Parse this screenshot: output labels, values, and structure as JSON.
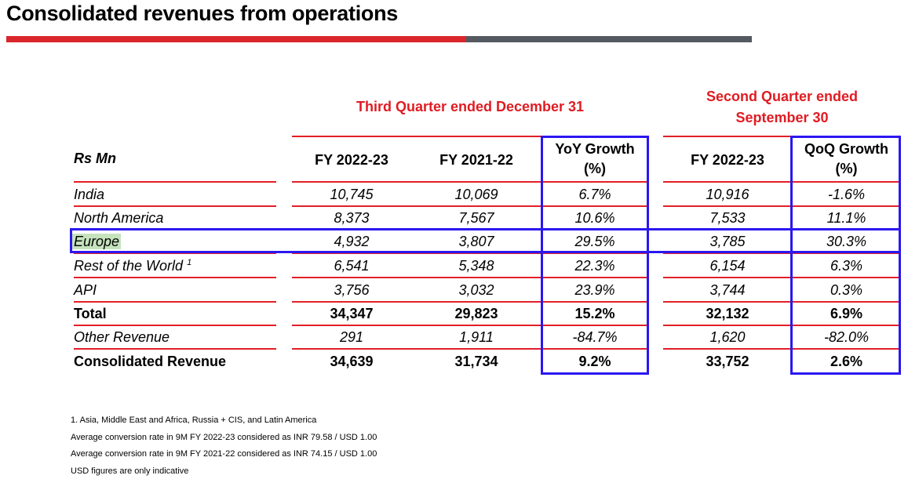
{
  "title": "Consolidated revenues from operations",
  "header": {
    "group_q3": "Third Quarter ended December 31",
    "group_q2_line1": "Second Quarter ended",
    "group_q2_line2": "September 30",
    "rs_mn": "Rs Mn",
    "col1": "FY 2022-23",
    "col2": "FY 2021-22",
    "col3_line1": "YoY Growth",
    "col3_line2": "(%)",
    "col4": "FY 2022-23",
    "col5_line1": "QoQ Growth",
    "col5_line2": "(%)"
  },
  "rows": [
    {
      "label": "India",
      "sup": "",
      "fy23": "10,745",
      "fy22": "10,069",
      "yoy": "6.7%",
      "q2": "10,916",
      "qoq": "-1.6%",
      "style": "italic"
    },
    {
      "label": "North America",
      "sup": "",
      "fy23": "8,373",
      "fy22": "7,567",
      "yoy": "10.6%",
      "q2": "7,533",
      "qoq": "11.1%",
      "style": "italic"
    },
    {
      "label": "Europe",
      "sup": "",
      "fy23": "4,932",
      "fy22": "3,807",
      "yoy": "29.5%",
      "q2": "3,785",
      "qoq": "30.3%",
      "style": "italic",
      "highlight": true
    },
    {
      "label": "Rest of the World",
      "sup": "1",
      "fy23": "6,541",
      "fy22": "5,348",
      "yoy": "22.3%",
      "q2": "6,154",
      "qoq": "6.3%",
      "style": "italic"
    },
    {
      "label": "API",
      "sup": "",
      "fy23": "3,756",
      "fy22": "3,032",
      "yoy": "23.9%",
      "q2": "3,744",
      "qoq": "0.3%",
      "style": "italic"
    },
    {
      "label": "Total",
      "sup": "",
      "fy23": "34,347",
      "fy22": "29,823",
      "yoy": "15.2%",
      "q2": "32,132",
      "qoq": "6.9%",
      "style": "bold"
    },
    {
      "label": "Other Revenue",
      "sup": "",
      "fy23": "291",
      "fy22": "1,911",
      "yoy": "-84.7%",
      "q2": "1,620",
      "qoq": "-82.0%",
      "style": "italic"
    },
    {
      "label": "Consolidated Revenue",
      "sup": "",
      "fy23": "34,639",
      "fy22": "31,734",
      "yoy": "9.2%",
      "q2": "33,752",
      "qoq": "2.6%",
      "style": "bold"
    }
  ],
  "footnotes": [
    "1. Asia, Middle East and Africa, Russia + CIS, and Latin America",
    "Average conversion rate in 9M FY 2022-23 considered as INR 79.58 / USD 1.00",
    "Average conversion rate in 9M FY 2021-22 considered as INR 74.15 / USD 1.00",
    "USD figures are only indicative"
  ],
  "colors": {
    "accent_red": "#e01b22",
    "title_bar_red": "#d9262b",
    "title_bar_gray": "#545a60",
    "box_blue": "#2b17f0",
    "highlight_green": "#c5e3bd"
  }
}
